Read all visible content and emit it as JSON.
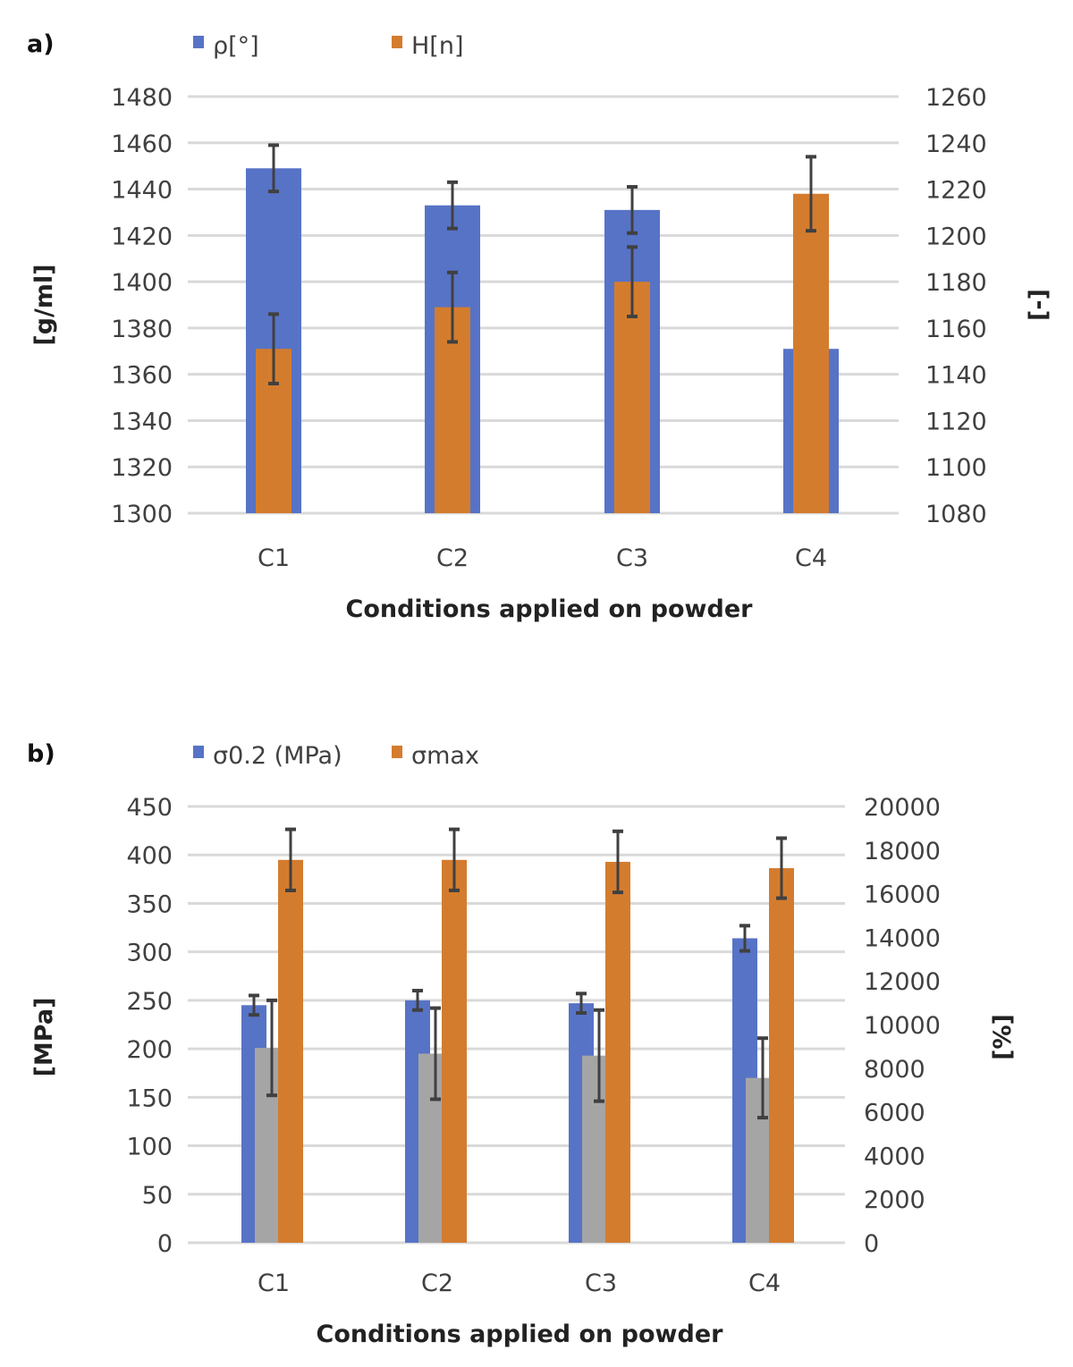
{
  "chart_data": [
    {
      "type": "bar",
      "panel_label": "a)",
      "categories": [
        "C1",
        "C2",
        "C3",
        "C4"
      ],
      "xlabel": "Conditions applied on powder",
      "ylabel": "[g/ml]",
      "y2label": "[-]",
      "ylim": [
        1300,
        1480
      ],
      "y2lim": [
        1080,
        1260
      ],
      "yticks": [
        1300,
        1320,
        1340,
        1360,
        1380,
        1400,
        1420,
        1440,
        1460,
        1480
      ],
      "y2ticks": [
        1080,
        1100,
        1120,
        1140,
        1160,
        1180,
        1200,
        1220,
        1240,
        1260
      ],
      "grid": true,
      "legend_position": "top-left",
      "series": [
        {
          "name": "ρ[°]",
          "axis": "left",
          "color": "#5773c6",
          "values": [
            1449,
            1433,
            1431,
            1371
          ],
          "errors": [
            10,
            10,
            10,
            0
          ],
          "legend": true
        },
        {
          "name": "H[n]",
          "axis": "right",
          "color": "#d47c2e",
          "values": [
            1151,
            1169,
            1180,
            1218
          ],
          "errors": [
            15,
            15,
            15,
            16
          ],
          "legend": true
        }
      ]
    },
    {
      "type": "bar",
      "panel_label": "b)",
      "categories": [
        "C1",
        "C2",
        "C3",
        "C4"
      ],
      "xlabel": "Conditions applied on powder",
      "ylabel": "[MPa]",
      "y2label": "[%]",
      "ylim": [
        0,
        450
      ],
      "y2lim": [
        0,
        20000
      ],
      "yticks": [
        0,
        50,
        100,
        150,
        200,
        250,
        300,
        350,
        400,
        450
      ],
      "y2ticks": [
        0,
        2000,
        4000,
        6000,
        8000,
        10000,
        12000,
        14000,
        16000,
        18000,
        20000
      ],
      "grid": true,
      "legend_position": "top-left",
      "series": [
        {
          "name": "σ0.2 (MPa)",
          "axis": "left",
          "color": "#5773c6",
          "values": [
            245,
            250,
            247,
            314
          ],
          "errors": [
            10,
            10,
            10,
            13
          ],
          "legend": true
        },
        {
          "name": "",
          "axis": "left",
          "color": "#a5a5a5",
          "values": [
            201,
            195,
            193,
            170
          ],
          "errors": [
            49,
            47,
            47,
            41
          ],
          "legend": false
        },
        {
          "name": "σmax",
          "axis": "right",
          "color": "#d47c2e",
          "values": [
            17550,
            17550,
            17460,
            17170
          ],
          "errors": [
            1400,
            1400,
            1400,
            1375
          ],
          "legend": true
        }
      ]
    }
  ]
}
